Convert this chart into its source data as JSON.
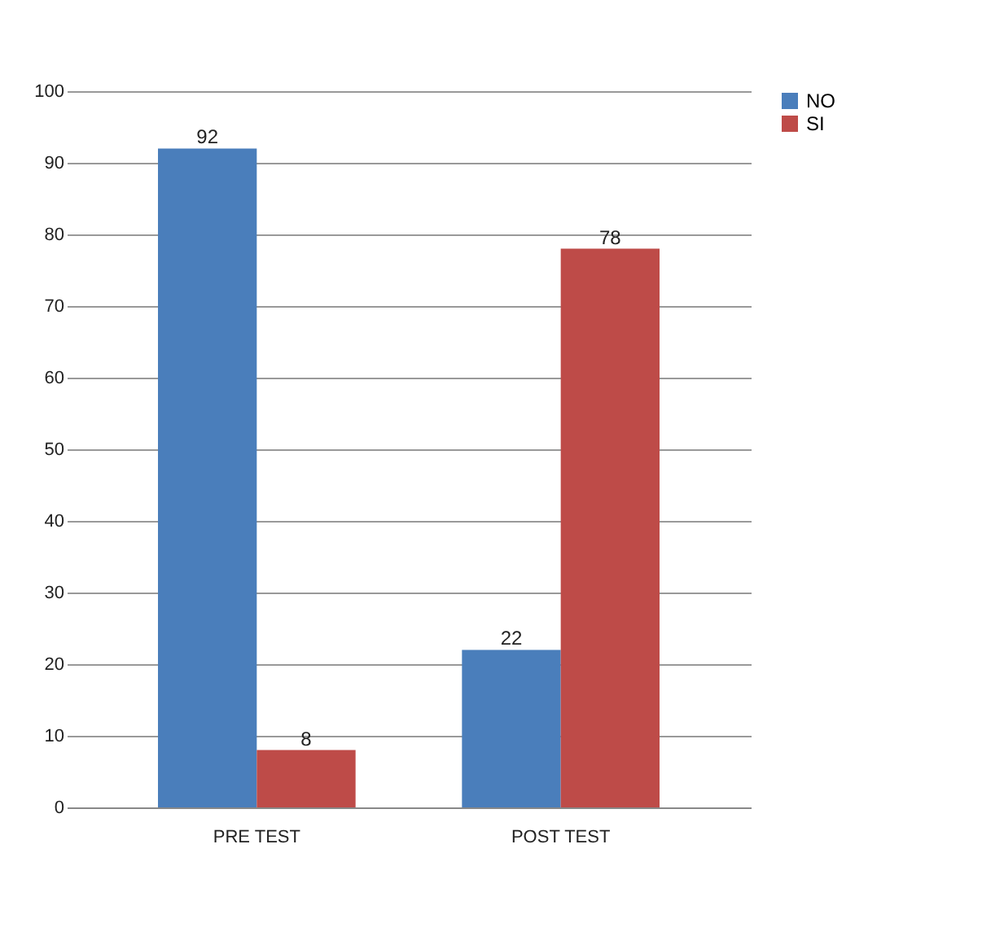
{
  "chart_data": {
    "type": "bar",
    "categories": [
      "PRE TEST",
      "POST TEST"
    ],
    "series": [
      {
        "name": "NO",
        "color": "#4a7ebb",
        "values": [
          92,
          22
        ]
      },
      {
        "name": "SI",
        "color": "#be4b48",
        "values": [
          8,
          78
        ]
      }
    ],
    "ylim": [
      0,
      100
    ],
    "yticks": [
      0,
      10,
      20,
      30,
      40,
      50,
      60,
      70,
      80,
      90,
      100
    ],
    "grid": "y",
    "legend": "right",
    "data_labels": true
  }
}
